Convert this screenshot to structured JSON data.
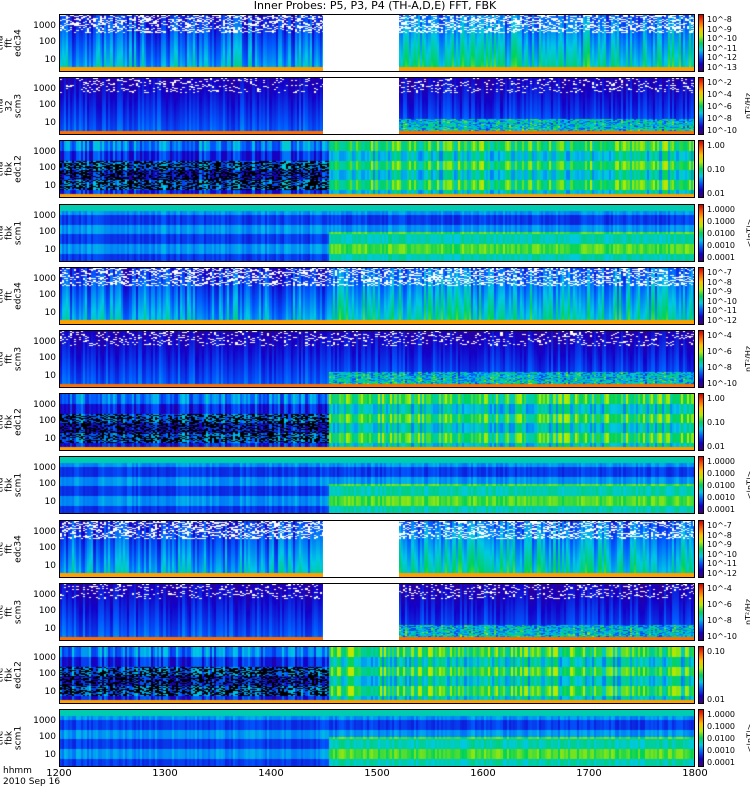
{
  "chart_data": {
    "type": "heatmap",
    "title": "Inner Probes: P5, P3, P4 (TH-A,D,E) FFT, FBK",
    "x_axis": {
      "ticks": [
        "1200",
        "1300",
        "1400",
        "1500",
        "1600",
        "1700",
        "1800"
      ],
      "labels": [
        "hhmm",
        "2010 Sep 16"
      ]
    },
    "panels": [
      {
        "ylabel": [
          "tha",
          "fft",
          "edc34"
        ],
        "yticks": [
          "1000",
          "100",
          "10"
        ],
        "cticks": [
          "10^-8",
          "10^-9",
          "10^-10",
          "10^-11",
          "10^-12",
          "10^-13"
        ],
        "cunit": "(V/m)²/Hz",
        "type": "edc",
        "gap": [
          1448,
          1520
        ]
      },
      {
        "ylabel": [
          "tha",
          "32",
          "scm3"
        ],
        "yticks": [
          "1000",
          "100",
          "10"
        ],
        "cticks": [
          "10^-2",
          "10^-4",
          "10^-6",
          "10^-8",
          "10^-10"
        ],
        "cunit": "nT²/Hz",
        "type": "scm",
        "gap": [
          1448,
          1520
        ]
      },
      {
        "ylabel": [
          "tha",
          "fbk",
          "edc12"
        ],
        "yticks": [
          "1000",
          "100",
          "10"
        ],
        "cticks": [
          "1.00",
          "0.10",
          "0.01"
        ],
        "cunit": "<|mV/m|>",
        "type": "fbke",
        "gap": null
      },
      {
        "ylabel": [
          "tha",
          "fbk",
          "scm1"
        ],
        "yticks": [
          "1000",
          "100",
          "10"
        ],
        "cticks": [
          "1.0000",
          "0.1000",
          "0.0100",
          "0.0010",
          "0.0001"
        ],
        "cunit": "<|nT|>",
        "type": "fbkb",
        "gap": null
      },
      {
        "ylabel": [
          "thd",
          "fft",
          "edc34"
        ],
        "yticks": [
          "1000",
          "100",
          "10"
        ],
        "cticks": [
          "10^-7",
          "10^-8",
          "10^-9",
          "10^-10",
          "10^-11",
          "10^-12"
        ],
        "cunit": "(V/m)²/Hz",
        "type": "edc",
        "gap": null
      },
      {
        "ylabel": [
          "thd",
          "fft",
          "scm3"
        ],
        "yticks": [
          "1000",
          "100",
          "10"
        ],
        "cticks": [
          "10^-4",
          "10^-6",
          "10^-8",
          "10^-10"
        ],
        "cunit": "nT²/Hz",
        "type": "scm",
        "gap": null
      },
      {
        "ylabel": [
          "thd",
          "fbk",
          "edc12"
        ],
        "yticks": [
          "1000",
          "100",
          "10"
        ],
        "cticks": [
          "1.00",
          "0.10",
          "0.01"
        ],
        "cunit": "<|mV/m|>",
        "type": "fbke",
        "gap": null
      },
      {
        "ylabel": [
          "thd",
          "fbk",
          "scm1"
        ],
        "yticks": [
          "1000",
          "100",
          "10"
        ],
        "cticks": [
          "1.0000",
          "0.1000",
          "0.0100",
          "0.0010",
          "0.0001"
        ],
        "cunit": "<|nT|>",
        "type": "fbkb",
        "gap": null
      },
      {
        "ylabel": [
          "the",
          "fft",
          "edc34"
        ],
        "yticks": [
          "1000",
          "100",
          "10"
        ],
        "cticks": [
          "10^-7",
          "10^-8",
          "10^-9",
          "10^-10",
          "10^-11",
          "10^-12"
        ],
        "cunit": "(V/m)²/Hz",
        "type": "edc",
        "gap": [
          1448,
          1520
        ]
      },
      {
        "ylabel": [
          "the",
          "fft",
          "scm3"
        ],
        "yticks": [
          "1000",
          "100",
          "10"
        ],
        "cticks": [
          "10^-4",
          "10^-6",
          "10^-8",
          "10^-10"
        ],
        "cunit": "nT²/Hz",
        "type": "scm",
        "gap": [
          1448,
          1520
        ]
      },
      {
        "ylabel": [
          "the",
          "fbk",
          "edc12"
        ],
        "yticks": [
          "1000",
          "100",
          "10"
        ],
        "cticks": [
          "0.10",
          "0.01"
        ],
        "cunit": "<|mV/m|>",
        "type": "fbke",
        "gap": null
      },
      {
        "ylabel": [
          "the",
          "fbk",
          "scm1"
        ],
        "yticks": [
          "1000",
          "100",
          "10"
        ],
        "cticks": [
          "1.0000",
          "0.1000",
          "0.0100",
          "0.0010",
          "0.0001"
        ],
        "cunit": "<|nT|>",
        "type": "fbkb",
        "gap": null
      }
    ],
    "xlim": [
      1200,
      1800
    ],
    "colormap": "rainbow",
    "grid": false,
    "legend": "colorbars-right"
  }
}
